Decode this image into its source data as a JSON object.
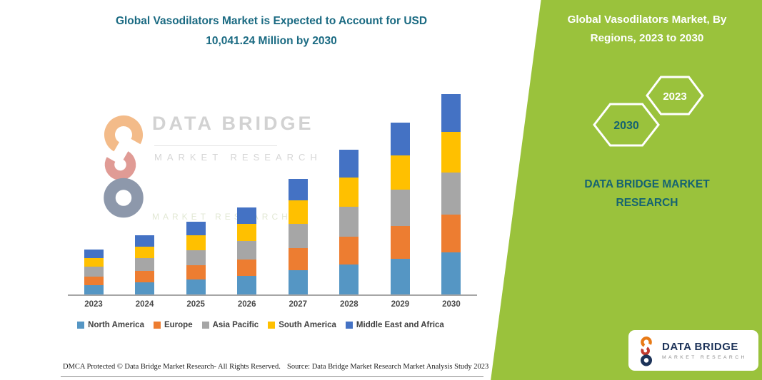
{
  "header": {
    "title_line1": "Global Vasodilators Market is Expected to Account for USD",
    "title_line2": "10,041.24 Million by 2030"
  },
  "chart_data": {
    "type": "bar",
    "stacked": true,
    "title": "Global Vasodilators Market is Expected to Account for USD 10,041.24 Million by 2030",
    "categories": [
      "2023",
      "2024",
      "2025",
      "2026",
      "2027",
      "2028",
      "2029",
      "2030"
    ],
    "series": [
      {
        "name": "North America",
        "color": "#5596c4",
        "values": [
          475,
          625,
          770,
          920,
          1220,
          1520,
          1805,
          2110
        ]
      },
      {
        "name": "Europe",
        "color": "#ed7d31",
        "values": [
          430,
          565,
          695,
          830,
          1105,
          1375,
          1635,
          1910
        ]
      },
      {
        "name": "Asia Pacific",
        "color": "#a6a6a6",
        "values": [
          475,
          625,
          770,
          920,
          1220,
          1520,
          1805,
          2110
        ]
      },
      {
        "name": "South America",
        "color": "#ffc000",
        "values": [
          450,
          595,
          730,
          875,
          1160,
          1450,
          1720,
          2005
        ]
      },
      {
        "name": "Middle East and Africa",
        "color": "#4472c4",
        "values": [
          430,
          565,
          695,
          830,
          1105,
          1375,
          1640,
          1906.24
        ]
      }
    ],
    "units": "USD Million",
    "xlabel": "",
    "ylabel": "",
    "ylim": [
      0,
      10500
    ],
    "grid": false,
    "legend_position": "bottom"
  },
  "watermark": {
    "line1": "DATA BRIDGE",
    "line2": "MARKET RESEARCH",
    "line3": "MARKET RESEARCH"
  },
  "right_panel": {
    "title_line1": "Global Vasodilators Market, By",
    "title_line2": "Regions, 2023 to 2030",
    "hexagon_back_label": "2030",
    "hexagon_front_label": "2023",
    "brand_line1": "DATA BRIDGE MARKET",
    "brand_line2": "RESEARCH"
  },
  "logo_card": {
    "brand": "DATA BRIDGE",
    "subtitle": "MARKET RESEARCH"
  },
  "footer": {
    "dmca": "DMCA Protected © Data Bridge Market Research-  All Rights Reserved.",
    "source": "Source: Data Bridge Market Research  Market Analysis Study 2023"
  },
  "colors": {
    "heading_teal": "#1a6a82",
    "panel_green": "#9ac23c",
    "brand_teal": "#156371",
    "logo_navy": "#1d3359",
    "logo_orange": "#e87a16",
    "logo_red": "#c23a2e"
  }
}
